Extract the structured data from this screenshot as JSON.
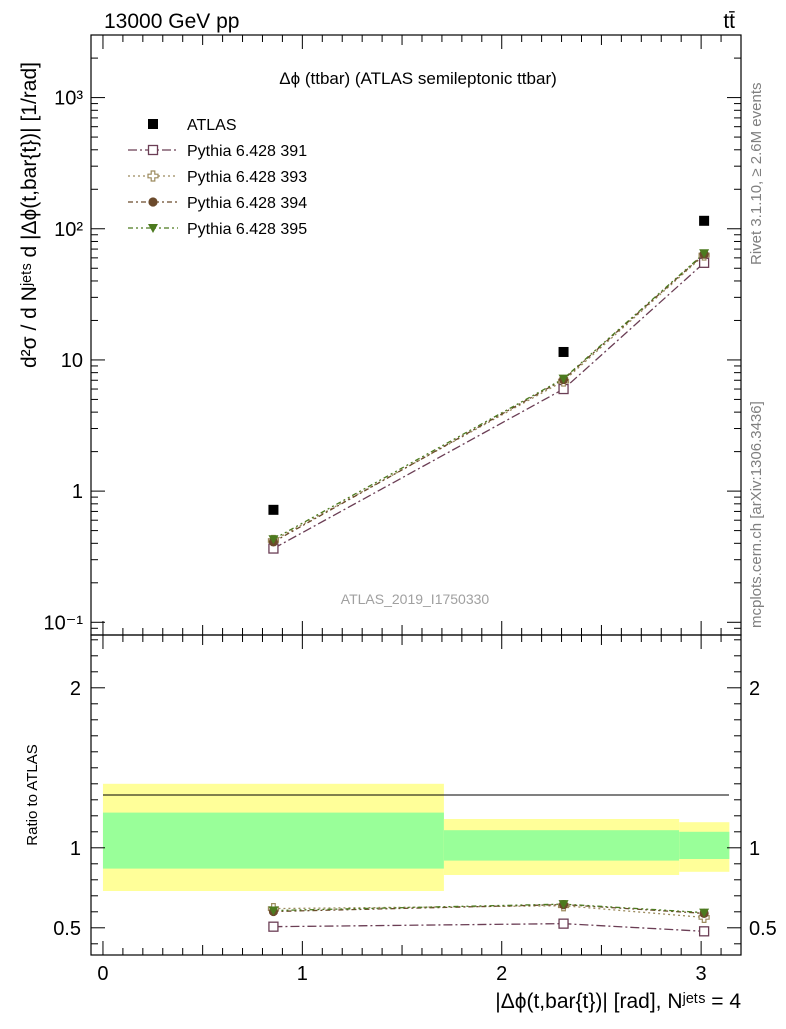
{
  "header": {
    "energy_label": "13000 GeV pp",
    "process_label": "tt̄"
  },
  "side": {
    "rivet_label": "Rivet 3.1.10, ≥ 2.6M events",
    "mcplots_label": "mcplots.cern.ch [arXiv:1306.3436]"
  },
  "colors": {
    "atlas": "#000000",
    "p391": "#6b3e55",
    "p393": "#9c8b5e",
    "p394": "#6b4a2b",
    "p395": "#4c7a1f",
    "band_stat": "#99ff99",
    "band_total": "#ffff99"
  },
  "chart_data": [
    {
      "type": "scatter",
      "title": "Δϕ (ttbar) (ATLAS semileptonic ttbar)",
      "watermark": "ATLAS_2019_I1750330",
      "ylabel": "d²σ / d Nʲᵉᵗˢ d |Δϕ(t,bar{t})| [1/rad]",
      "yscale": "log",
      "ylim": [
        0.08,
        3000
      ],
      "xlim": [
        -0.06,
        3.2
      ],
      "ytick_labels": [
        "10⁻¹",
        "1",
        "10",
        "10²",
        "10³"
      ],
      "x": [
        0.855,
        2.31,
        3.015
      ],
      "series": [
        {
          "name": "ATLAS",
          "values": [
            0.72,
            11.5,
            115
          ],
          "marker": "square-filled"
        },
        {
          "name": "Pythia 6.428 391",
          "values": [
            0.365,
            6.0,
            55.0
          ],
          "marker": "square-open"
        },
        {
          "name": "Pythia 6.428 393",
          "values": [
            0.42,
            6.9,
            63.0
          ],
          "marker": "cross-open"
        },
        {
          "name": "Pythia 6.428 394",
          "values": [
            0.41,
            7.1,
            64.0
          ],
          "marker": "circle-filled"
        },
        {
          "name": "Pythia 6.428 395",
          "values": [
            0.43,
            7.2,
            65.0
          ],
          "marker": "triangle-down-filled"
        }
      ]
    },
    {
      "type": "line",
      "ylabel": "Ratio to ATLAS",
      "xlabel": "|Δϕ(t,bar{t})| [rad], Nʲᵉᵗˢ = 4",
      "xlim": [
        -0.06,
        3.2
      ],
      "ylim": [
        0.33,
        2.33
      ],
      "x_tick_labels": [
        "0",
        "1",
        "2",
        "3"
      ],
      "y_tick_labels": [
        "0.5",
        "1",
        "2"
      ],
      "bins": [
        [
          0,
          1.71
        ],
        [
          1.71,
          2.89
        ],
        [
          2.89,
          3.1416
        ]
      ],
      "band_total": [
        [
          0.73,
          1.4
        ],
        [
          0.83,
          1.18
        ],
        [
          0.85,
          1.16
        ]
      ],
      "band_stat": [
        [
          0.87,
          1.22
        ],
        [
          0.92,
          1.11
        ],
        [
          0.93,
          1.1
        ]
      ],
      "x": [
        0.855,
        2.31,
        3.015
      ],
      "series": [
        {
          "name": "Pythia 6.428 391",
          "values": [
            0.507,
            0.526,
            0.478
          ]
        },
        {
          "name": "Pythia 6.428 393",
          "values": [
            0.62,
            0.638,
            0.565
          ]
        },
        {
          "name": "Pythia 6.428 394",
          "values": [
            0.602,
            0.645,
            0.59
          ]
        },
        {
          "name": "Pythia 6.428 395",
          "values": [
            0.608,
            0.648,
            0.595
          ]
        }
      ]
    }
  ]
}
